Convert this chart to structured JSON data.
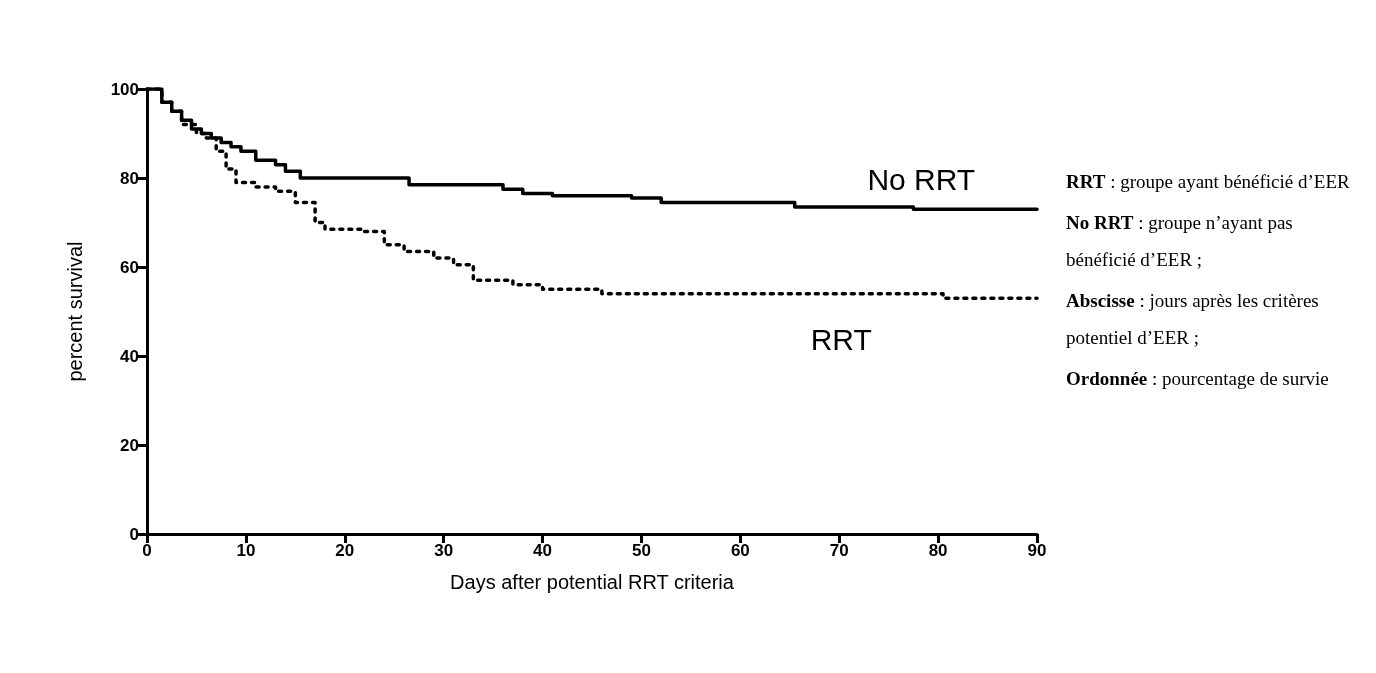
{
  "chart_data": {
    "type": "step",
    "xlabel": "Days after potential RRT criteria",
    "ylabel": "percent survival",
    "xlim": [
      0,
      90
    ],
    "xticks": [
      0,
      10,
      20,
      30,
      40,
      50,
      60,
      70,
      80,
      90
    ],
    "ylim": [
      0,
      100
    ],
    "yticks": [
      0,
      20,
      40,
      60,
      80,
      100
    ],
    "grid": false,
    "legend": false,
    "marker": "none",
    "series": [
      {
        "name": "No RRT",
        "color": "#000000",
        "line_style": "solid",
        "x": [
          0,
          1,
          1.5,
          2.5,
          3.5,
          4.5,
          5.5,
          6.5,
          7.5,
          8.5,
          9.5,
          11,
          13,
          14,
          15.5,
          25,
          26.5,
          35,
          36,
          38,
          41,
          49,
          52,
          65,
          65.5,
          77,
          77.5,
          90
        ],
        "values": [
          100,
          100,
          97,
          95,
          93,
          91,
          90,
          89,
          88,
          87,
          86,
          84,
          83,
          81.5,
          80,
          80,
          78.5,
          78.5,
          77.5,
          76.5,
          76,
          75.5,
          74.5,
          74.5,
          73.5,
          73.5,
          73,
          73
        ]
      },
      {
        "name": "RRT",
        "color": "#000000",
        "line_style": "dotted",
        "x": [
          0,
          1.5,
          2.5,
          3.5,
          5,
          6,
          7,
          8,
          9,
          11,
          13,
          15,
          17,
          18,
          22,
          24,
          26,
          29,
          31,
          33,
          35,
          37,
          40,
          45,
          46,
          80,
          80.5,
          90
        ],
        "values": [
          100,
          97,
          95,
          92,
          90,
          89,
          86,
          82,
          79,
          78,
          77,
          74.5,
          70,
          68.5,
          68,
          65,
          63.5,
          62,
          60.5,
          57,
          57,
          56,
          55,
          55,
          54,
          54,
          53,
          53
        ]
      }
    ],
    "annotations": [
      "RRT : groupe ayant bénéficié d’EER",
      "No RRT : groupe n’ayant pas bénéficié d’EER ;",
      "Abscisse : jours après les critères potentiel d’EER ;",
      "Ordonnée : pourcentage de survie"
    ]
  }
}
